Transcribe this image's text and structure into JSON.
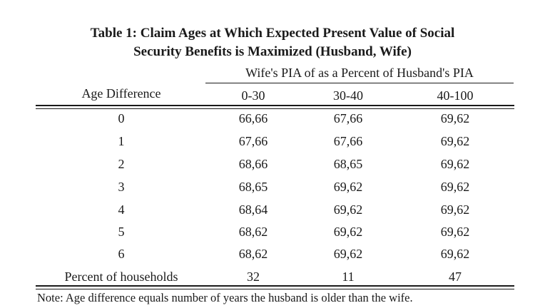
{
  "table": {
    "title_line1": "Table 1: Claim Ages at Which Expected Present Value of Social",
    "title_line2": "Security Benefits is Maximized (Husband, Wife)",
    "spanner": "Wife's PIA of as a Percent of Husband's PIA",
    "stub_header": "Age Difference",
    "columns": [
      "0-30",
      "30-40",
      "40-100"
    ],
    "rows": [
      {
        "label": "0",
        "values": [
          "66,66",
          "67,66",
          "69,62"
        ]
      },
      {
        "label": "1",
        "values": [
          "67,66",
          "67,66",
          "69,62"
        ]
      },
      {
        "label": "2",
        "values": [
          "68,66",
          "68,65",
          "69,62"
        ]
      },
      {
        "label": "3",
        "values": [
          "68,65",
          "69,62",
          "69,62"
        ]
      },
      {
        "label": "4",
        "values": [
          "68,64",
          "69,62",
          "69,62"
        ]
      },
      {
        "label": "5",
        "values": [
          "68,62",
          "69,62",
          "69,62"
        ]
      },
      {
        "label": "6",
        "values": [
          "68,62",
          "69,62",
          "69,62"
        ]
      },
      {
        "label": "Percent of households",
        "values": [
          "32",
          "11",
          "47"
        ]
      }
    ],
    "note": "Note: Age difference equals number of years the husband is older than the wife."
  }
}
